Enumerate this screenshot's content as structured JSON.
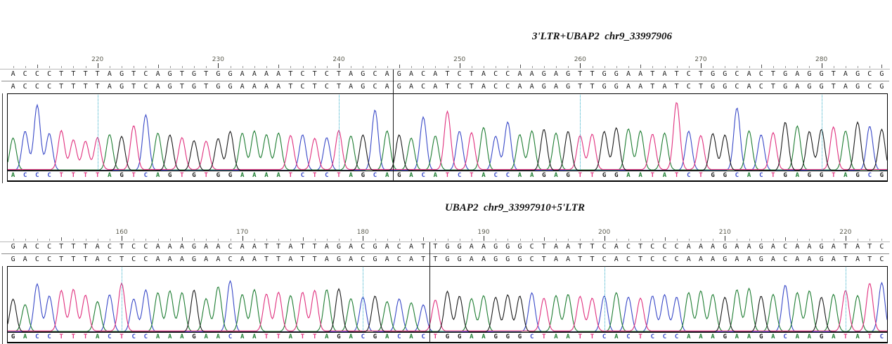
{
  "chart_data": {
    "type": "line",
    "description": "Two Sanger sequencing chromatogram alignment panels showing LTR-UBAP2 integration junctions",
    "base_colors": {
      "A": "#1e7d32",
      "C": "#3949c8",
      "G": "#1a1a1a",
      "T": "#e0307e"
    },
    "guide_color": "#35aec8",
    "panels": [
      {
        "title": "3'LTR+UBAP2  chr9_33997906",
        "ruler": {
          "start": 213,
          "end": 285,
          "major_labels": [
            220,
            230,
            240,
            250,
            260,
            270,
            280
          ]
        },
        "guide_positions": [
          220,
          240,
          260,
          280
        ],
        "reference_row": "ACCCTTTTAGTCAGTGTGGAAAATCTCTAGCAGACATCTACCAAGAGTTGGAATATCTGGCACTGAGGTAGCG",
        "aligned_row": "ACCCTTTTAGTCAGTGTGGAAAATCTCTAGCAGACATCTACCAAGAGTTGGAATATCTGGCACTGAGGTAGCG",
        "basecall_row": "ACCCTTTTAGTCAGTGTGGAAAATCTCTAGCAGACATCTACCAAGAGTTGGAATATCTGGCACTGAGGTAGCG",
        "junction_after_base": 32,
        "peak_heights": [
          0.45,
          0.55,
          0.92,
          0.52,
          0.55,
          0.42,
          0.4,
          0.45,
          0.5,
          0.48,
          0.62,
          0.78,
          0.52,
          0.5,
          0.45,
          0.42,
          0.4,
          0.45,
          0.55,
          0.52,
          0.55,
          0.5,
          0.52,
          0.48,
          0.5,
          0.44,
          0.46,
          0.55,
          0.48,
          0.5,
          0.85,
          0.55,
          0.5,
          0.45,
          0.75,
          0.48,
          0.82,
          0.55,
          0.52,
          0.6,
          0.48,
          0.68,
          0.5,
          0.55,
          0.58,
          0.52,
          0.55,
          0.48,
          0.5,
          0.55,
          0.6,
          0.58,
          0.55,
          0.5,
          0.52,
          0.95,
          0.55,
          0.48,
          0.52,
          0.5,
          0.88,
          0.55,
          0.5,
          0.52,
          0.68,
          0.62,
          0.55,
          0.58,
          0.6,
          0.55,
          0.68,
          0.62,
          0.58
        ]
      },
      {
        "title": "UBAP2  chr9_33997910+5'LTR",
        "ruler": {
          "start": 151,
          "end": 223,
          "major_labels": [
            160,
            170,
            180,
            190,
            200,
            210,
            220
          ]
        },
        "guide_positions": [
          160,
          180,
          200,
          220
        ],
        "reference_row": "GACCTTTACTCCAAAGAACAATTATTAGACGACATTGGAAGGGCTAATTCACTCCCAAAGAAGACAAGATATC",
        "aligned_row": "GACCTTTACTCCAAAGAACAATTATTAGACGACATTGGAAGGGCTAATTCACTCCCAAAGAAGACAAGATATC",
        "basecall_row": "GACCTTTACTCCAAAGAACAATTATTAGACGACACTGGAAGGGCTAATTCACTCCCAAAGAAGACAAGATATC",
        "junction_after_base": 35,
        "peak_heights": [
          0.55,
          0.45,
          0.8,
          0.6,
          0.68,
          0.7,
          0.6,
          0.5,
          0.62,
          0.8,
          0.55,
          0.7,
          0.65,
          0.68,
          0.65,
          0.7,
          0.55,
          0.75,
          0.85,
          0.62,
          0.7,
          0.62,
          0.65,
          0.6,
          0.65,
          0.68,
          0.7,
          0.72,
          0.55,
          0.58,
          0.6,
          0.5,
          0.55,
          0.48,
          0.45,
          0.52,
          0.68,
          0.6,
          0.55,
          0.6,
          0.58,
          0.62,
          0.6,
          0.65,
          0.55,
          0.6,
          0.62,
          0.58,
          0.55,
          0.6,
          0.65,
          0.58,
          0.55,
          0.6,
          0.62,
          0.58,
          0.65,
          0.68,
          0.62,
          0.58,
          0.7,
          0.72,
          0.6,
          0.62,
          0.78,
          0.65,
          0.68,
          0.58,
          0.62,
          0.68,
          0.6,
          0.8,
          0.82
        ]
      }
    ]
  }
}
